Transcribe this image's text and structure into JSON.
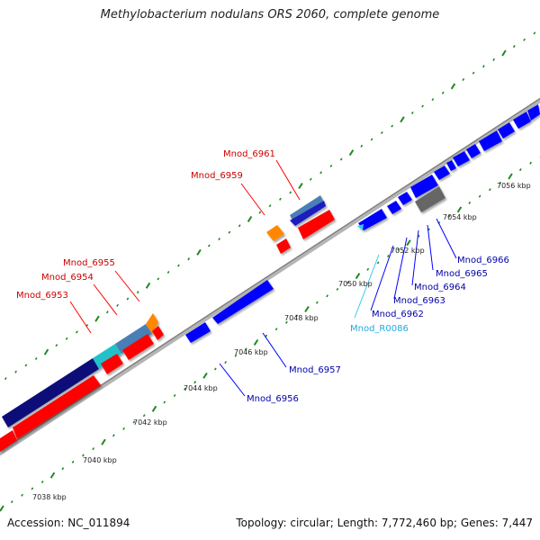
{
  "title": "Methylobacterium nodulans ORS 2060, complete genome",
  "footer": {
    "accession": "Accession: NC_011894",
    "topology": "Topology: circular; Length: 7,772,460 bp; Genes: 7,447"
  },
  "scale_labels": [
    "7038 kbp",
    "7040 kbp",
    "7042 kbp",
    "7044 kbp",
    "7046 kbp",
    "7048 kbp",
    "7050 kbp",
    "7052 kbp",
    "7054 kbp",
    "7056 kbp"
  ],
  "gene_labels": {
    "mnod_6953": "Mnod_6953",
    "mnod_6954": "Mnod_6954",
    "mnod_6955": "Mnod_6955",
    "mnod_6959": "Mnod_6959",
    "mnod_6961": "Mnod_6961",
    "mnod_6956": "Mnod_6956",
    "mnod_6957": "Mnod_6957",
    "mnod_r0086": "Mnod_R0086",
    "mnod_6962": "Mnod_6962",
    "mnod_6963": "Mnod_6963",
    "mnod_6964": "Mnod_6964",
    "mnod_6965": "Mnod_6965",
    "mnod_6966": "Mnod_6966"
  },
  "colors": {
    "forward_gene": "#ff0000",
    "reverse_gene": "#0000ff",
    "rna_gene": "#33ccee",
    "backbone": "#999999",
    "tick": "#228822",
    "label_forward": "#cc0000",
    "label_reverse": "#0000aa",
    "label_rna": "#22aadd"
  }
}
